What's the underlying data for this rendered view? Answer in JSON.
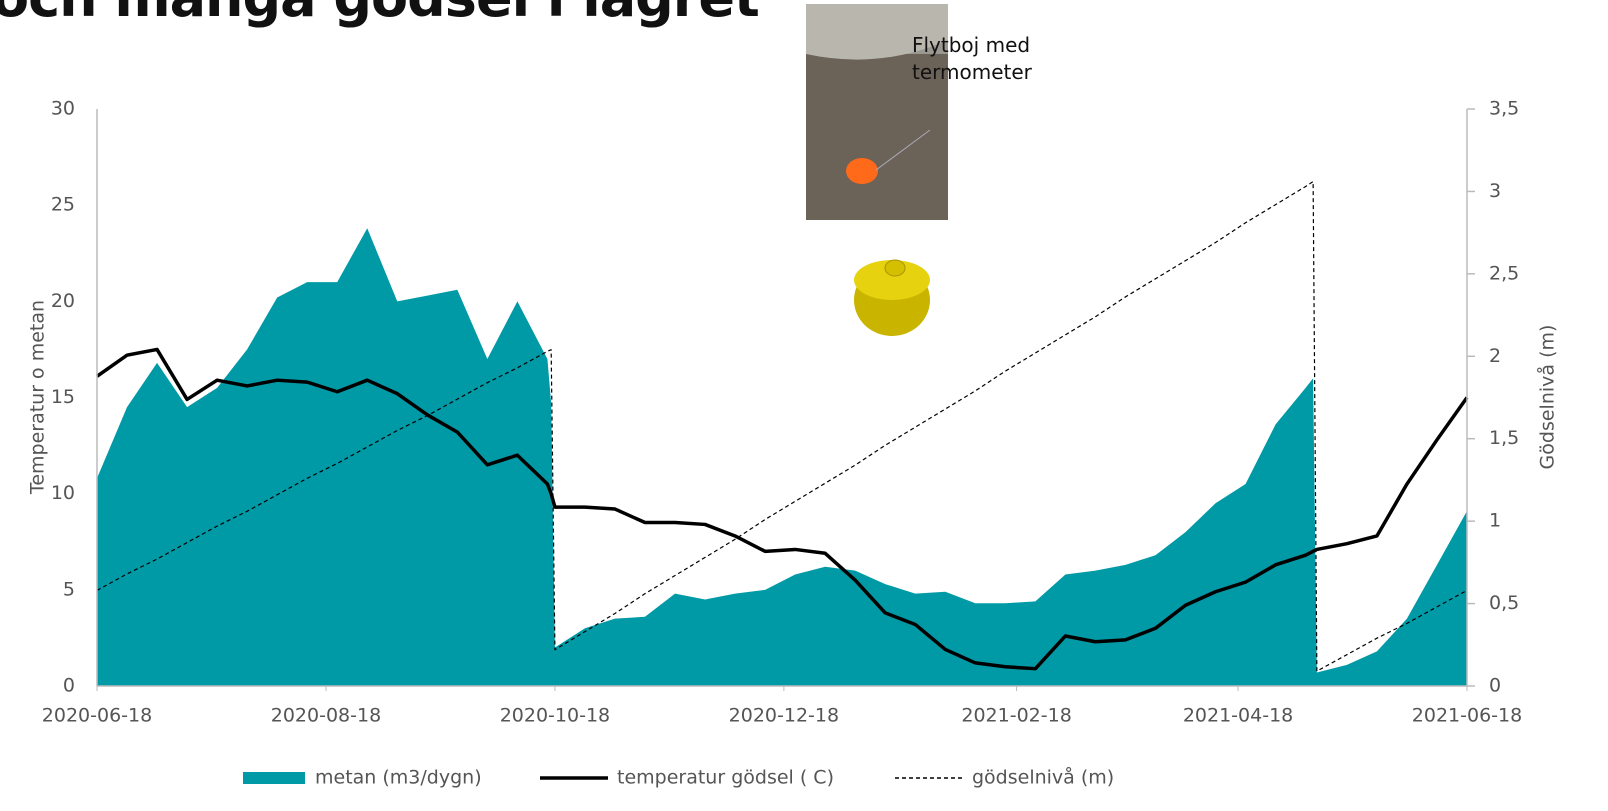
{
  "chart_data": {
    "type": "combo",
    "title": "och många gödsel i lagret",
    "annotation": "Flytboj med termometer",
    "y_label": "Temperatur o metan",
    "y2_label": "Gödselnivå (m)",
    "x": [
      "2020-06-18",
      "2020-06-26",
      "2020-07-04",
      "2020-07-12",
      "2020-07-20",
      "2020-07-28",
      "2020-08-05",
      "2020-08-13",
      "2020-08-21",
      "2020-08-29",
      "2020-09-06",
      "2020-09-14",
      "2020-09-22",
      "2020-09-30",
      "2020-10-08",
      "2020-10-16",
      "2020-10-17",
      "2020-10-18",
      "2020-10-26",
      "2020-11-03",
      "2020-11-11",
      "2020-11-19",
      "2020-11-27",
      "2020-12-05",
      "2020-12-13",
      "2020-12-21",
      "2020-12-29",
      "2021-01-06",
      "2021-01-14",
      "2021-01-22",
      "2021-01-30",
      "2021-02-07",
      "2021-02-15",
      "2021-02-23",
      "2021-03-03",
      "2021-03-11",
      "2021-03-19",
      "2021-03-27",
      "2021-04-04",
      "2021-04-12",
      "2021-04-20",
      "2021-04-28",
      "2021-05-06",
      "2021-05-08",
      "2021-05-09",
      "2021-05-17",
      "2021-05-25",
      "2021-06-02",
      "2021-06-10",
      "2021-06-18"
    ],
    "series": [
      {
        "name": "metan (m3/dygn)",
        "kind": "area",
        "color": "#009aa6",
        "values": [
          10.8,
          14.5,
          16.8,
          14.5,
          15.5,
          17.5,
          20.2,
          21.0,
          21.0,
          23.8,
          20.0,
          20.3,
          20.6,
          17.0,
          20.0,
          17.0,
          14.7,
          2.0,
          3.0,
          3.5,
          3.6,
          4.8,
          4.5,
          4.8,
          5.0,
          5.8,
          6.2,
          6.0,
          5.3,
          4.8,
          4.9,
          4.3,
          4.3,
          4.4,
          5.8,
          6.0,
          6.3,
          6.8,
          8.0,
          9.5,
          10.5,
          13.6,
          15.5,
          16.0,
          0.7,
          1.1,
          1.8,
          3.5,
          6.3,
          9.1
        ]
      },
      {
        "name": "temperatur gödsel ( C)",
        "kind": "line",
        "color": "#000000",
        "values": [
          16.1,
          17.2,
          17.5,
          14.9,
          15.9,
          15.6,
          15.9,
          15.8,
          15.3,
          15.9,
          15.2,
          14.1,
          13.2,
          11.5,
          12.0,
          10.5,
          10.0,
          9.3,
          9.3,
          9.2,
          8.5,
          8.5,
          8.4,
          7.8,
          7.0,
          7.1,
          6.9,
          5.5,
          3.8,
          3.2,
          1.9,
          1.2,
          1.0,
          0.9,
          2.6,
          2.3,
          2.4,
          3.0,
          4.2,
          4.9,
          5.4,
          6.3,
          6.8,
          7.0,
          7.1,
          7.4,
          7.8,
          10.5,
          12.8,
          15.0
        ]
      },
      {
        "name": "gödselnivå (m)",
        "kind": "dashed",
        "color": "#000000",
        "axis": "y2",
        "values": [
          0.58,
          0.68,
          0.77,
          0.87,
          0.97,
          1.06,
          1.16,
          1.26,
          1.35,
          1.45,
          1.55,
          1.64,
          1.74,
          1.84,
          1.93,
          2.03,
          2.04,
          0.22,
          0.33,
          0.44,
          0.56,
          0.67,
          0.78,
          0.89,
          1.01,
          1.12,
          1.23,
          1.34,
          1.46,
          1.57,
          1.68,
          1.79,
          1.91,
          2.02,
          2.13,
          2.24,
          2.36,
          2.47,
          2.58,
          2.69,
          2.81,
          2.92,
          3.03,
          3.06,
          0.09,
          0.19,
          0.29,
          0.38,
          0.48,
          0.58
        ]
      }
    ],
    "xlim": [
      "2020-06-18",
      "2021-06-18"
    ],
    "xticks": [
      "2020-06-18",
      "2020-08-18",
      "2020-10-18",
      "2020-12-18",
      "2021-02-18",
      "2021-04-18",
      "2021-06-18"
    ],
    "ylim": [
      0,
      30
    ],
    "yticks": [
      0,
      5,
      10,
      15,
      20,
      25,
      30
    ],
    "y2lim": [
      0,
      3.5
    ],
    "y2ticks": [
      0,
      {
        "value": 0.5,
        "label": "0,5"
      },
      1,
      {
        "value": 1.5,
        "label": "1,5"
      },
      2,
      {
        "value": 2.5,
        "label": "2,5"
      },
      3,
      {
        "value": 3.5,
        "label": "3,5"
      }
    ],
    "legend": "bottom",
    "grid": false
  }
}
